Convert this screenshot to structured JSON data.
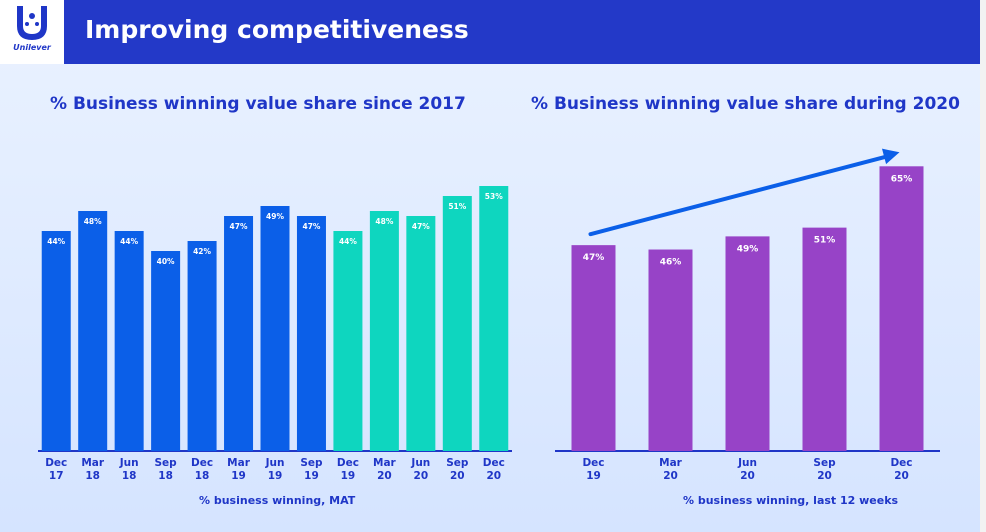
{
  "header": {
    "title": "Improving competitiveness",
    "logo_text": "Unilever"
  },
  "colors": {
    "header_bg": "#2339c8",
    "blue_bar": "#0b5fe8",
    "teal_bar": "#0ed6bf",
    "purple_bar": "#9743c7",
    "axis": "#1f36c7",
    "arrow": "#0b5fe8"
  },
  "chart_data": [
    {
      "type": "bar",
      "title": "% Business winning value share since 2017",
      "xlabel": "% business winning, MAT",
      "ylabel": "",
      "categories": [
        [
          "Dec",
          "17"
        ],
        [
          "Mar",
          "18"
        ],
        [
          "Jun",
          "18"
        ],
        [
          "Sep",
          "18"
        ],
        [
          "Dec",
          "18"
        ],
        [
          "Mar",
          "19"
        ],
        [
          "Jun",
          "19"
        ],
        [
          "Sep",
          "19"
        ],
        [
          "Dec",
          "19"
        ],
        [
          "Mar",
          "20"
        ],
        [
          "Jun",
          "20"
        ],
        [
          "Sep",
          "20"
        ],
        [
          "Dec",
          "20"
        ]
      ],
      "values": [
        44,
        48,
        44,
        40,
        42,
        47,
        49,
        47,
        44,
        48,
        47,
        51,
        53
      ],
      "labels": [
        "44%",
        "48%",
        "44%",
        "40%",
        "42%",
        "47%",
        "49%",
        "47%",
        "44%",
        "48%",
        "47%",
        "51%",
        "53%"
      ],
      "bar_colors": [
        "blue",
        "blue",
        "blue",
        "blue",
        "blue",
        "blue",
        "blue",
        "blue",
        "teal",
        "teal",
        "teal",
        "teal",
        "teal"
      ],
      "ylim": [
        0,
        56
      ]
    },
    {
      "type": "bar",
      "title": "% Business winning value share during 2020",
      "xlabel": "% business winning, last 12 weeks",
      "ylabel": "",
      "categories": [
        [
          "Dec",
          "19"
        ],
        [
          "Mar",
          "20"
        ],
        [
          "Jun",
          "20"
        ],
        [
          "Sep",
          "20"
        ],
        [
          "Dec",
          "20"
        ]
      ],
      "values": [
        47,
        46,
        49,
        51,
        65
      ],
      "labels": [
        "47%",
        "46%",
        "49%",
        "51%",
        "65%"
      ],
      "bar_colors": [
        "purple",
        "purple",
        "purple",
        "purple",
        "purple"
      ],
      "ylim": [
        0,
        70
      ],
      "annotation": "upward trend arrow"
    }
  ]
}
